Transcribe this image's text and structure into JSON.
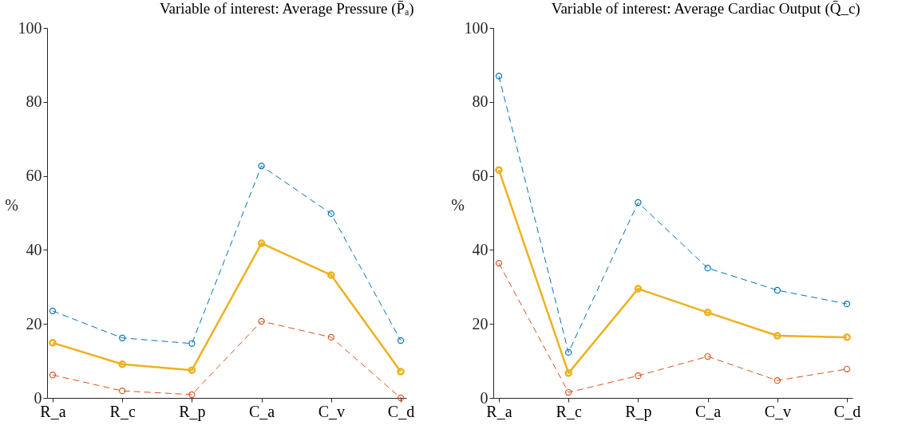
{
  "chart_data": [
    {
      "type": "line",
      "title": "Variable of interest: Average Pressure (P̄ₐ)",
      "ylabel": "%",
      "categories": [
        "R_a",
        "R_c",
        "R_p",
        "C_a",
        "C_v",
        "C_d"
      ],
      "ylim": [
        0,
        100
      ],
      "yticks": [
        0,
        20,
        40,
        60,
        80,
        100
      ],
      "grid": false,
      "marker": "circle",
      "series": [
        {
          "color": "#0072bd",
          "line_style": "dashed",
          "values": [
            23.5,
            16.2,
            14.7,
            62.7,
            49.8,
            15.5
          ]
        },
        {
          "color": "#d95319",
          "line_style": "dashed",
          "values": [
            6.2,
            1.9,
            0.9,
            20.7,
            16.4,
            0
          ]
        },
        {
          "color": "#edb120",
          "line_style": "solid",
          "values": [
            14.9,
            9.1,
            7.5,
            41.8,
            33.2,
            7.1
          ]
        }
      ]
    },
    {
      "type": "line",
      "title": "Variable of interest: Average Cardiac Output (Q̄_c)",
      "ylabel": "%",
      "categories": [
        "R_a",
        "R_c",
        "R_p",
        "C_a",
        "C_v",
        "C_d"
      ],
      "ylim": [
        0,
        100
      ],
      "yticks": [
        0,
        20,
        40,
        60,
        80,
        100
      ],
      "grid": false,
      "marker": "circle",
      "series": [
        {
          "color": "#0072bd",
          "line_style": "dashed",
          "values": [
            87,
            12.3,
            52.8,
            35.1,
            29.1,
            25.4
          ]
        },
        {
          "color": "#d95319",
          "line_style": "dashed",
          "values": [
            36.4,
            1.5,
            6.0,
            11.2,
            4.7,
            7.8
          ]
        },
        {
          "color": "#edb120",
          "line_style": "solid",
          "values": [
            61.6,
            6.7,
            29.5,
            23.1,
            16.8,
            16.4
          ]
        }
      ]
    }
  ]
}
